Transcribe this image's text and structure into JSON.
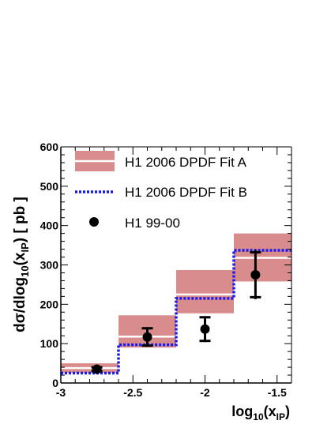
{
  "chart_data": {
    "type": "step",
    "xlabel": {
      "base": "log",
      "sub": "10",
      "rest": "(x",
      "sub2": "IP",
      "close": ")"
    },
    "ylabel": {
      "pre": "dσ/dlog",
      "sub": "10",
      "mid": "(x",
      "sub2": "IP",
      "post": ") [ pb ]"
    },
    "xlim": [
      -3,
      -1.4
    ],
    "ylim": [
      0,
      600
    ],
    "x_ticks": [
      -3,
      -2.5,
      -2,
      -1.5
    ],
    "x_tick_labels": [
      "-3",
      "-2.5",
      "-2",
      "-1.5"
    ],
    "y_ticks": [
      0,
      100,
      200,
      300,
      400,
      500,
      600
    ],
    "y_tick_labels": [
      "0",
      "100",
      "200",
      "300",
      "400",
      "500",
      "600"
    ],
    "bins": [
      [
        -3.0,
        -2.6
      ],
      [
        -2.6,
        -2.2
      ],
      [
        -2.2,
        -1.8
      ],
      [
        -1.8,
        -1.4
      ]
    ],
    "series": [
      {
        "name": "H1 2006 DPDF Fit A",
        "kind": "band",
        "color": "#d98c8c",
        "central": [
          38,
          118,
          225,
          318
        ],
        "low": [
          26,
          90,
          177,
          258
        ],
        "high": [
          50,
          172,
          287,
          380
        ]
      },
      {
        "name": "H1 2006 DPDF Fit B",
        "kind": "dashed-step",
        "color": "#1a1aee",
        "values": [
          25,
          97,
          215,
          337
        ]
      },
      {
        "name": "H1 99-00",
        "kind": "points",
        "color": "#000000",
        "x": [
          -2.75,
          -2.4,
          -2.0,
          -1.65
        ],
        "y": [
          35,
          117,
          137,
          275
        ],
        "err_low": [
          10,
          25,
          33,
          62
        ],
        "err_high": [
          10,
          25,
          33,
          63
        ],
        "syst_low": [
          5,
          22,
          30,
          57
        ],
        "syst_high": [
          5,
          22,
          30,
          57
        ]
      }
    ]
  }
}
